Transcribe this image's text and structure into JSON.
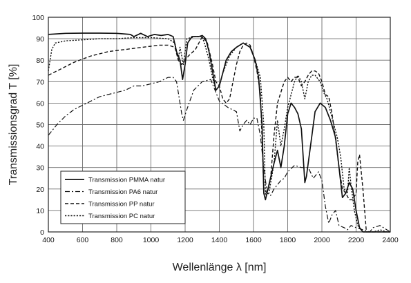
{
  "chart_data": {
    "type": "line",
    "xlabel": "Wellenlänge λ [nm]",
    "ylabel": "Transmissionsgrad T [%]",
    "xlim": [
      400,
      2400
    ],
    "ylim": [
      0,
      100
    ],
    "xticks": [
      400,
      600,
      800,
      1000,
      1200,
      1400,
      1600,
      1800,
      2000,
      2200,
      2400
    ],
    "yticks": [
      0,
      10,
      20,
      30,
      40,
      50,
      60,
      70,
      80,
      90,
      100
    ],
    "grid": true,
    "legend_position": "bottom-left",
    "series": [
      {
        "name": "Transmission PMMA natur",
        "style": "solid",
        "points": [
          [
            400,
            92
          ],
          [
            500,
            92.5
          ],
          [
            600,
            92.6
          ],
          [
            700,
            92.6
          ],
          [
            800,
            92.5
          ],
          [
            880,
            92
          ],
          [
            900,
            91
          ],
          [
            940,
            92.5
          ],
          [
            980,
            91
          ],
          [
            1020,
            92
          ],
          [
            1060,
            91.5
          ],
          [
            1100,
            92
          ],
          [
            1130,
            91
          ],
          [
            1150,
            84
          ],
          [
            1170,
            80
          ],
          [
            1185,
            71
          ],
          [
            1200,
            78
          ],
          [
            1215,
            88
          ],
          [
            1240,
            91
          ],
          [
            1280,
            91
          ],
          [
            1300,
            91.5
          ],
          [
            1320,
            90
          ],
          [
            1340,
            84
          ],
          [
            1360,
            75
          ],
          [
            1380,
            66
          ],
          [
            1400,
            68
          ],
          [
            1420,
            74
          ],
          [
            1440,
            80
          ],
          [
            1470,
            84
          ],
          [
            1500,
            86
          ],
          [
            1540,
            88
          ],
          [
            1580,
            86
          ],
          [
            1610,
            80
          ],
          [
            1630,
            72
          ],
          [
            1650,
            50
          ],
          [
            1660,
            18
          ],
          [
            1670,
            15
          ],
          [
            1690,
            22
          ],
          [
            1720,
            32
          ],
          [
            1740,
            38
          ],
          [
            1760,
            30
          ],
          [
            1780,
            40
          ],
          [
            1800,
            55
          ],
          [
            1820,
            60
          ],
          [
            1840,
            58
          ],
          [
            1860,
            55
          ],
          [
            1880,
            48
          ],
          [
            1900,
            23
          ],
          [
            1910,
            26
          ],
          [
            1930,
            38
          ],
          [
            1960,
            56
          ],
          [
            1990,
            60
          ],
          [
            2020,
            58
          ],
          [
            2050,
            52
          ],
          [
            2080,
            44
          ],
          [
            2100,
            30
          ],
          [
            2120,
            16
          ],
          [
            2140,
            18
          ],
          [
            2160,
            23
          ],
          [
            2180,
            20
          ],
          [
            2200,
            10
          ],
          [
            2220,
            2
          ],
          [
            2240,
            0
          ],
          [
            2400,
            0
          ]
        ]
      },
      {
        "name": "Transmission PA6 natur",
        "style": "dash-dot",
        "points": [
          [
            400,
            45
          ],
          [
            450,
            50
          ],
          [
            500,
            54
          ],
          [
            550,
            57
          ],
          [
            600,
            59
          ],
          [
            700,
            63
          ],
          [
            800,
            65
          ],
          [
            850,
            66
          ],
          [
            900,
            68
          ],
          [
            950,
            68
          ],
          [
            1000,
            69
          ],
          [
            1050,
            70
          ],
          [
            1100,
            72
          ],
          [
            1130,
            72
          ],
          [
            1150,
            70
          ],
          [
            1170,
            60
          ],
          [
            1180,
            55
          ],
          [
            1190,
            52
          ],
          [
            1210,
            57
          ],
          [
            1250,
            66
          ],
          [
            1300,
            70
          ],
          [
            1350,
            71
          ],
          [
            1400,
            61
          ],
          [
            1450,
            58
          ],
          [
            1500,
            56
          ],
          [
            1520,
            47
          ],
          [
            1540,
            50
          ],
          [
            1560,
            52
          ],
          [
            1580,
            50
          ],
          [
            1600,
            53
          ],
          [
            1620,
            53
          ],
          [
            1640,
            45
          ],
          [
            1660,
            30
          ],
          [
            1680,
            18
          ],
          [
            1700,
            17
          ],
          [
            1720,
            20
          ],
          [
            1740,
            22
          ],
          [
            1760,
            24
          ],
          [
            1780,
            25
          ],
          [
            1800,
            28
          ],
          [
            1840,
            31
          ],
          [
            1880,
            30
          ],
          [
            1920,
            30
          ],
          [
            1950,
            25
          ],
          [
            1980,
            28
          ],
          [
            2000,
            24
          ],
          [
            2020,
            12
          ],
          [
            2040,
            4
          ],
          [
            2060,
            8
          ],
          [
            2080,
            10
          ],
          [
            2100,
            3
          ],
          [
            2130,
            2
          ],
          [
            2150,
            1
          ],
          [
            2170,
            3
          ],
          [
            2200,
            2
          ],
          [
            2240,
            1
          ],
          [
            2280,
            0
          ],
          [
            2300,
            2
          ],
          [
            2340,
            3
          ],
          [
            2380,
            1
          ],
          [
            2400,
            0
          ]
        ]
      },
      {
        "name": "Transmission PP natur",
        "style": "dashed",
        "points": [
          [
            400,
            73
          ],
          [
            450,
            75
          ],
          [
            500,
            77
          ],
          [
            550,
            79
          ],
          [
            600,
            80.5
          ],
          [
            650,
            82
          ],
          [
            700,
            83
          ],
          [
            750,
            84
          ],
          [
            800,
            84.5
          ],
          [
            850,
            85
          ],
          [
            900,
            85.5
          ],
          [
            950,
            86
          ],
          [
            1000,
            86.5
          ],
          [
            1050,
            87
          ],
          [
            1100,
            87
          ],
          [
            1140,
            86
          ],
          [
            1160,
            80
          ],
          [
            1180,
            78
          ],
          [
            1200,
            80
          ],
          [
            1220,
            82
          ],
          [
            1260,
            85
          ],
          [
            1300,
            91
          ],
          [
            1330,
            88
          ],
          [
            1360,
            78
          ],
          [
            1380,
            70
          ],
          [
            1400,
            68
          ],
          [
            1420,
            62
          ],
          [
            1440,
            60
          ],
          [
            1460,
            62
          ],
          [
            1480,
            70
          ],
          [
            1500,
            78
          ],
          [
            1520,
            84
          ],
          [
            1540,
            87
          ],
          [
            1560,
            88
          ],
          [
            1580,
            87
          ],
          [
            1600,
            82
          ],
          [
            1620,
            75
          ],
          [
            1640,
            65
          ],
          [
            1660,
            20
          ],
          [
            1680,
            18
          ],
          [
            1700,
            25
          ],
          [
            1720,
            45
          ],
          [
            1740,
            60
          ],
          [
            1760,
            65
          ],
          [
            1780,
            70
          ],
          [
            1800,
            72
          ],
          [
            1820,
            70
          ],
          [
            1840,
            72
          ],
          [
            1860,
            72
          ],
          [
            1880,
            68
          ],
          [
            1900,
            70
          ],
          [
            1920,
            73
          ],
          [
            1940,
            75
          ],
          [
            1960,
            75
          ],
          [
            1980,
            74
          ],
          [
            2000,
            70
          ],
          [
            2020,
            64
          ],
          [
            2040,
            63
          ],
          [
            2060,
            55
          ],
          [
            2080,
            43
          ],
          [
            2100,
            30
          ],
          [
            2120,
            20
          ],
          [
            2140,
            18
          ],
          [
            2160,
            15
          ],
          [
            2180,
            15
          ],
          [
            2200,
            18
          ],
          [
            2210,
            33
          ],
          [
            2220,
            36
          ],
          [
            2240,
            20
          ],
          [
            2260,
            0
          ],
          [
            2400,
            0
          ]
        ]
      },
      {
        "name": "Transmission PC natur",
        "style": "dotted",
        "points": [
          [
            400,
            75
          ],
          [
            410,
            80
          ],
          [
            420,
            85
          ],
          [
            440,
            88
          ],
          [
            470,
            88.5
          ],
          [
            500,
            89
          ],
          [
            600,
            89.5
          ],
          [
            700,
            90
          ],
          [
            800,
            90
          ],
          [
            900,
            90.5
          ],
          [
            1000,
            90.5
          ],
          [
            1100,
            90
          ],
          [
            1140,
            88
          ],
          [
            1160,
            80
          ],
          [
            1170,
            86
          ],
          [
            1190,
            78
          ],
          [
            1210,
            90
          ],
          [
            1260,
            91
          ],
          [
            1300,
            91
          ],
          [
            1320,
            86
          ],
          [
            1340,
            80
          ],
          [
            1360,
            72
          ],
          [
            1380,
            66
          ],
          [
            1400,
            68
          ],
          [
            1420,
            74
          ],
          [
            1460,
            82
          ],
          [
            1500,
            86
          ],
          [
            1540,
            88
          ],
          [
            1580,
            86
          ],
          [
            1610,
            80
          ],
          [
            1640,
            72
          ],
          [
            1660,
            50
          ],
          [
            1670,
            17
          ],
          [
            1690,
            18
          ],
          [
            1720,
            32
          ],
          [
            1740,
            52
          ],
          [
            1760,
            40
          ],
          [
            1780,
            48
          ],
          [
            1800,
            58
          ],
          [
            1840,
            70
          ],
          [
            1860,
            73
          ],
          [
            1880,
            70
          ],
          [
            1900,
            62
          ],
          [
            1920,
            70
          ],
          [
            1940,
            73
          ],
          [
            1960,
            73
          ],
          [
            1990,
            70
          ],
          [
            2010,
            65
          ],
          [
            2030,
            62
          ],
          [
            2050,
            56
          ],
          [
            2070,
            50
          ],
          [
            2090,
            44
          ],
          [
            2110,
            35
          ],
          [
            2130,
            20
          ],
          [
            2150,
            18
          ],
          [
            2160,
            30
          ],
          [
            2170,
            22
          ],
          [
            2190,
            10
          ],
          [
            2210,
            3
          ],
          [
            2240,
            0
          ],
          [
            2300,
            0
          ],
          [
            2340,
            1
          ],
          [
            2380,
            0
          ],
          [
            2400,
            0
          ]
        ]
      }
    ]
  }
}
